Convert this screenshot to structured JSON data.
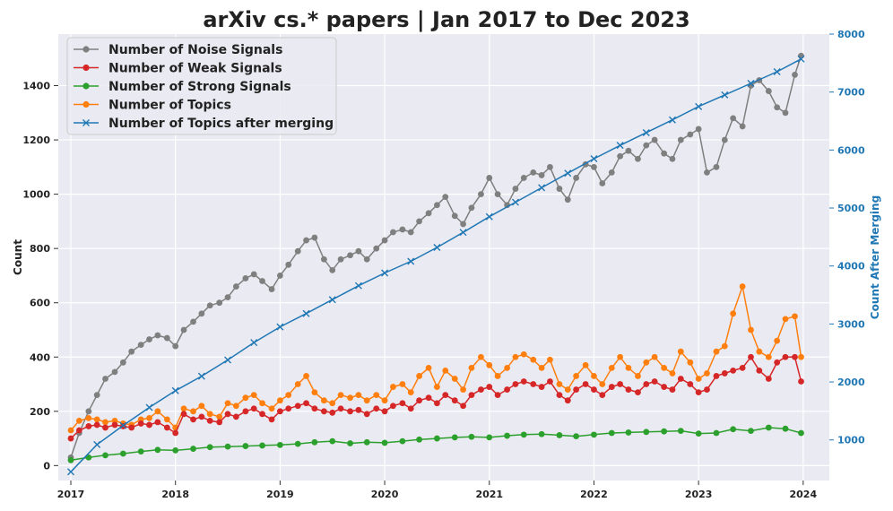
{
  "chart_data": {
    "type": "line",
    "title": "arXiv cs.* papers | Jan 2017 to Dec 2023",
    "xlabel": "",
    "ylabel": "Count",
    "ylabel_right": "Count After Merging",
    "xlim": [
      2016.88,
      2024.25
    ],
    "ylim": [
      -55,
      1590
    ],
    "ylim_right": [
      300,
      8000
    ],
    "x_ticks": [
      2017,
      2018,
      2019,
      2020,
      2021,
      2022,
      2023,
      2024
    ],
    "x_tick_labels": [
      "2017",
      "2018",
      "2019",
      "2020",
      "2021",
      "2022",
      "2023",
      "2024"
    ],
    "y_ticks": [
      0,
      200,
      400,
      600,
      800,
      1000,
      1200,
      1400
    ],
    "y_tick_labels": [
      "0",
      "200",
      "400",
      "600",
      "800",
      "1000",
      "1200",
      "1400"
    ],
    "y_ticks_right": [
      1000,
      2000,
      3000,
      4000,
      5000,
      6000,
      7000,
      8000
    ],
    "y_tick_labels_right": [
      "1000",
      "2000",
      "3000",
      "4000",
      "5000",
      "6000",
      "7000",
      "8000"
    ],
    "grid": true,
    "legend_position": "top-left",
    "colors": {
      "noise": "#7f7f7f",
      "weak": "#d62728",
      "strong": "#2ca02c",
      "topics": "#ff7f0e",
      "merged": "#1f77b4",
      "plot_bg": "#eaeaf2",
      "grid": "#ffffff"
    },
    "series": [
      {
        "name": "Number of Noise Signals",
        "key": "noise",
        "axis": "left",
        "marker": "circle",
        "x": [
          2017.0,
          2017.08,
          2017.17,
          2017.25,
          2017.33,
          2017.42,
          2017.5,
          2017.58,
          2017.67,
          2017.75,
          2017.83,
          2017.92,
          2018.0,
          2018.08,
          2018.17,
          2018.25,
          2018.33,
          2018.42,
          2018.5,
          2018.58,
          2018.67,
          2018.75,
          2018.83,
          2018.92,
          2019.0,
          2019.08,
          2019.17,
          2019.25,
          2019.33,
          2019.42,
          2019.5,
          2019.58,
          2019.67,
          2019.75,
          2019.83,
          2019.92,
          2020.0,
          2020.08,
          2020.17,
          2020.25,
          2020.33,
          2020.42,
          2020.5,
          2020.58,
          2020.67,
          2020.75,
          2020.83,
          2020.92,
          2021.0,
          2021.08,
          2021.17,
          2021.25,
          2021.33,
          2021.42,
          2021.5,
          2021.58,
          2021.67,
          2021.75,
          2021.83,
          2021.92,
          2022.0,
          2022.08,
          2022.17,
          2022.25,
          2022.33,
          2022.42,
          2022.5,
          2022.58,
          2022.67,
          2022.75,
          2022.83,
          2022.92,
          2023.0,
          2023.08,
          2023.17,
          2023.25,
          2023.33,
          2023.42,
          2023.5,
          2023.58,
          2023.67,
          2023.75,
          2023.83,
          2023.92,
          2023.98
        ],
        "values": [
          30,
          120,
          200,
          260,
          320,
          345,
          380,
          420,
          445,
          465,
          480,
          470,
          440,
          500,
          530,
          560,
          590,
          600,
          620,
          660,
          690,
          705,
          680,
          650,
          700,
          740,
          790,
          830,
          840,
          760,
          720,
          760,
          775,
          790,
          760,
          800,
          830,
          860,
          870,
          860,
          900,
          930,
          960,
          990,
          920,
          890,
          950,
          1000,
          1060,
          1000,
          960,
          1020,
          1060,
          1080,
          1070,
          1100,
          1020,
          980,
          1060,
          1110,
          1100,
          1040,
          1080,
          1140,
          1160,
          1130,
          1180,
          1200,
          1150,
          1130,
          1200,
          1220,
          1240,
          1080,
          1100,
          1200,
          1280,
          1250,
          1400,
          1420,
          1380,
          1320,
          1300,
          1440,
          1510
        ]
      },
      {
        "name": "Number of Weak Signals",
        "key": "weak",
        "axis": "left",
        "marker": "circle",
        "x": [
          2017.0,
          2017.08,
          2017.17,
          2017.25,
          2017.33,
          2017.42,
          2017.5,
          2017.58,
          2017.67,
          2017.75,
          2017.83,
          2017.92,
          2018.0,
          2018.08,
          2018.17,
          2018.25,
          2018.33,
          2018.42,
          2018.5,
          2018.58,
          2018.67,
          2018.75,
          2018.83,
          2018.92,
          2019.0,
          2019.08,
          2019.17,
          2019.25,
          2019.33,
          2019.42,
          2019.5,
          2019.58,
          2019.67,
          2019.75,
          2019.83,
          2019.92,
          2020.0,
          2020.08,
          2020.17,
          2020.25,
          2020.33,
          2020.42,
          2020.5,
          2020.58,
          2020.67,
          2020.75,
          2020.83,
          2020.92,
          2021.0,
          2021.08,
          2021.17,
          2021.25,
          2021.33,
          2021.42,
          2021.5,
          2021.58,
          2021.67,
          2021.75,
          2021.83,
          2021.92,
          2022.0,
          2022.08,
          2022.17,
          2022.25,
          2022.33,
          2022.42,
          2022.5,
          2022.58,
          2022.67,
          2022.75,
          2022.83,
          2022.92,
          2023.0,
          2023.08,
          2023.17,
          2023.25,
          2023.33,
          2023.42,
          2023.5,
          2023.58,
          2023.67,
          2023.75,
          2023.83,
          2023.92,
          2023.98
        ],
        "values": [
          100,
          130,
          145,
          150,
          140,
          150,
          145,
          140,
          155,
          150,
          160,
          140,
          120,
          190,
          170,
          180,
          165,
          160,
          190,
          180,
          200,
          210,
          190,
          170,
          200,
          210,
          220,
          230,
          210,
          200,
          195,
          210,
          200,
          205,
          190,
          210,
          200,
          220,
          230,
          210,
          240,
          250,
          230,
          260,
          240,
          220,
          260,
          280,
          290,
          260,
          280,
          300,
          310,
          300,
          290,
          310,
          260,
          240,
          280,
          300,
          280,
          260,
          290,
          300,
          280,
          270,
          300,
          310,
          290,
          280,
          320,
          300,
          270,
          280,
          330,
          340,
          350,
          360,
          400,
          350,
          320,
          380,
          400,
          400,
          310
        ]
      },
      {
        "name": "Number of Strong Signals",
        "key": "strong",
        "axis": "left",
        "marker": "circle",
        "x": [
          2017.0,
          2017.17,
          2017.33,
          2017.5,
          2017.67,
          2017.83,
          2018.0,
          2018.17,
          2018.33,
          2018.5,
          2018.67,
          2018.83,
          2019.0,
          2019.17,
          2019.33,
          2019.5,
          2019.67,
          2019.83,
          2020.0,
          2020.17,
          2020.33,
          2020.5,
          2020.67,
          2020.83,
          2021.0,
          2021.17,
          2021.33,
          2021.5,
          2021.67,
          2021.83,
          2022.0,
          2022.17,
          2022.33,
          2022.5,
          2022.67,
          2022.83,
          2023.0,
          2023.17,
          2023.33,
          2023.5,
          2023.67,
          2023.83,
          2023.98
        ],
        "values": [
          20,
          30,
          38,
          44,
          52,
          58,
          56,
          62,
          68,
          70,
          72,
          74,
          76,
          80,
          86,
          90,
          82,
          86,
          84,
          90,
          96,
          100,
          104,
          106,
          104,
          110,
          114,
          116,
          112,
          108,
          114,
          120,
          122,
          124,
          126,
          128,
          118,
          120,
          134,
          128,
          140,
          136,
          120
        ]
      },
      {
        "name": "Number of Topics",
        "key": "topics",
        "axis": "left",
        "marker": "circle",
        "x": [
          2017.0,
          2017.08,
          2017.17,
          2017.25,
          2017.33,
          2017.42,
          2017.5,
          2017.58,
          2017.67,
          2017.75,
          2017.83,
          2017.92,
          2018.0,
          2018.08,
          2018.17,
          2018.25,
          2018.33,
          2018.42,
          2018.5,
          2018.58,
          2018.67,
          2018.75,
          2018.83,
          2018.92,
          2019.0,
          2019.08,
          2019.17,
          2019.25,
          2019.33,
          2019.42,
          2019.5,
          2019.58,
          2019.67,
          2019.75,
          2019.83,
          2019.92,
          2020.0,
          2020.08,
          2020.17,
          2020.25,
          2020.33,
          2020.42,
          2020.5,
          2020.58,
          2020.67,
          2020.75,
          2020.83,
          2020.92,
          2021.0,
          2021.08,
          2021.17,
          2021.25,
          2021.33,
          2021.42,
          2021.5,
          2021.58,
          2021.67,
          2021.75,
          2021.83,
          2021.92,
          2022.0,
          2022.08,
          2022.17,
          2022.25,
          2022.33,
          2022.42,
          2022.5,
          2022.58,
          2022.67,
          2022.75,
          2022.83,
          2022.92,
          2023.0,
          2023.08,
          2023.17,
          2023.25,
          2023.33,
          2023.42,
          2023.5,
          2023.58,
          2023.67,
          2023.75,
          2023.83,
          2023.92,
          2023.98
        ],
        "values": [
          130,
          165,
          175,
          170,
          160,
          165,
          155,
          150,
          170,
          175,
          200,
          170,
          140,
          210,
          200,
          220,
          190,
          180,
          230,
          220,
          250,
          260,
          230,
          210,
          240,
          260,
          300,
          330,
          270,
          240,
          230,
          260,
          250,
          260,
          240,
          260,
          240,
          290,
          300,
          270,
          330,
          360,
          290,
          350,
          320,
          280,
          360,
          400,
          370,
          330,
          360,
          400,
          410,
          390,
          360,
          390,
          300,
          280,
          330,
          370,
          330,
          300,
          360,
          400,
          360,
          330,
          380,
          400,
          360,
          340,
          420,
          380,
          320,
          340,
          420,
          440,
          560,
          660,
          500,
          420,
          400,
          460,
          540,
          550,
          400
        ]
      },
      {
        "name": "Number of Topics after merging",
        "key": "merged",
        "axis": "right",
        "marker": "x",
        "x": [
          2017.0,
          2017.25,
          2017.5,
          2017.75,
          2018.0,
          2018.25,
          2018.5,
          2018.75,
          2019.0,
          2019.25,
          2019.5,
          2019.75,
          2020.0,
          2020.25,
          2020.5,
          2020.75,
          2021.0,
          2021.25,
          2021.5,
          2021.75,
          2022.0,
          2022.25,
          2022.5,
          2022.75,
          2023.0,
          2023.25,
          2023.5,
          2023.75,
          2023.98
        ],
        "values": [
          450,
          920,
          1250,
          1560,
          1850,
          2100,
          2380,
          2680,
          2950,
          3180,
          3420,
          3660,
          3880,
          4080,
          4320,
          4580,
          4850,
          5100,
          5350,
          5600,
          5850,
          6080,
          6300,
          6520,
          6750,
          6950,
          7150,
          7350,
          7570
        ]
      }
    ]
  }
}
